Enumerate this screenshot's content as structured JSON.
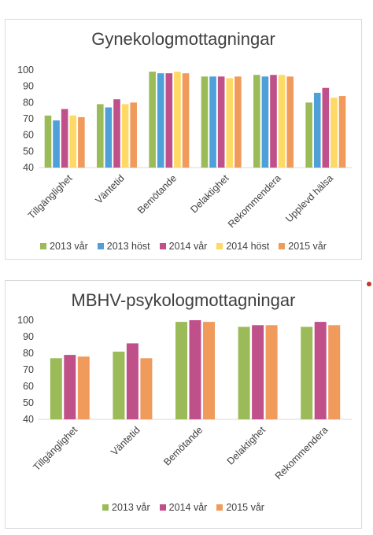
{
  "chart_data": [
    {
      "type": "bar",
      "title": "Gynekologmottagningar",
      "categories": [
        "Tillgänglighet",
        "Väntetid",
        "Bemötande",
        "Delaktighet",
        "Rekommendera",
        "Upplevd hälsa"
      ],
      "series": [
        {
          "name": "2013 vår",
          "color": "#9bbb59",
          "values": [
            72,
            79,
            99,
            96,
            97,
            80
          ]
        },
        {
          "name": "2013 höst",
          "color": "#4f9fd8",
          "values": [
            69,
            77,
            98,
            96,
            96,
            86
          ]
        },
        {
          "name": "2014 vår",
          "color": "#c0508a",
          "values": [
            76,
            82,
            98,
            96,
            97,
            89
          ]
        },
        {
          "name": "2014 höst",
          "color": "#ffd966",
          "values": [
            72,
            79,
            99,
            95,
            97,
            83
          ]
        },
        {
          "name": "2015 vår",
          "color": "#f09a5c",
          "values": [
            71,
            80,
            98,
            96,
            96,
            84
          ]
        }
      ],
      "ylim": [
        40,
        100
      ],
      "yticks": [
        40,
        50,
        60,
        70,
        80,
        90,
        100
      ],
      "grid": false,
      "legend_position": "bottom"
    },
    {
      "type": "bar",
      "title": "MBHV-psykologmottagningar",
      "categories": [
        "Tillgänglighet",
        "Väntetid",
        "Bemötande",
        "Delaktighet",
        "Rekommendera"
      ],
      "series": [
        {
          "name": "2013 vår",
          "color": "#9bbb59",
          "values": [
            77,
            81,
            99,
            96,
            96
          ]
        },
        {
          "name": "2014 vår",
          "color": "#c0508a",
          "values": [
            79,
            86,
            100,
            97,
            99
          ]
        },
        {
          "name": "2015 vår",
          "color": "#f09a5c",
          "values": [
            78,
            77,
            99,
            97,
            97
          ]
        }
      ],
      "ylim": [
        40,
        100
      ],
      "yticks": [
        40,
        50,
        60,
        70,
        80,
        90,
        100
      ],
      "grid": false,
      "legend_position": "bottom"
    }
  ]
}
